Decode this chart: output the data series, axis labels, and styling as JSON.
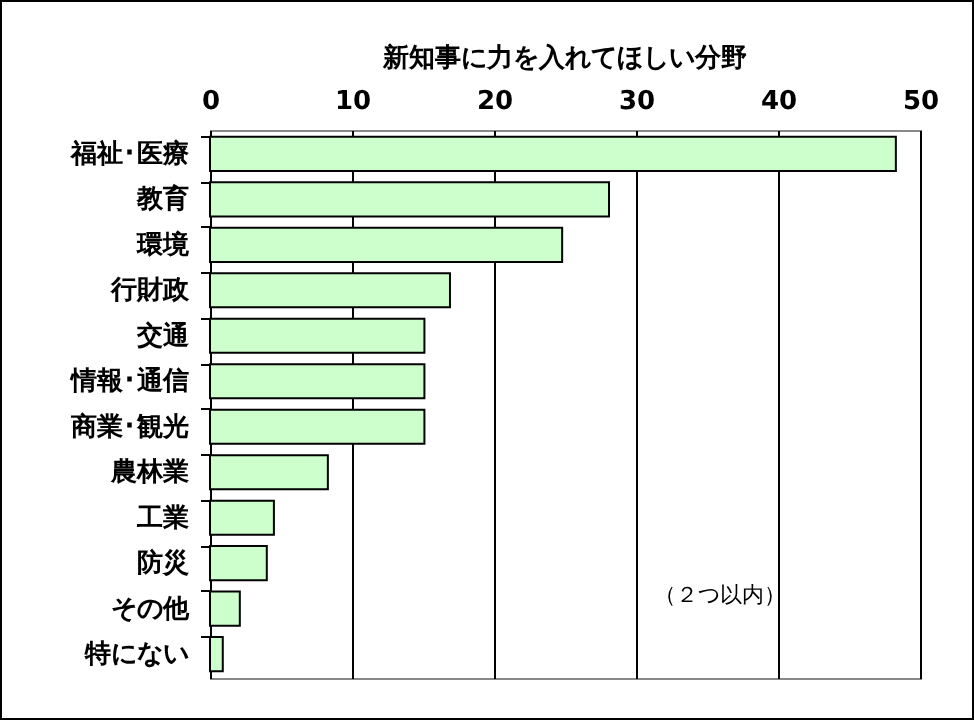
{
  "chart_data": {
    "type": "bar",
    "orientation": "horizontal",
    "title": "新知事に力を入れてほしい分野",
    "categories": [
      "福祉･医療",
      "教育",
      "環境",
      "行財政",
      "交通",
      "情報･通信",
      "商業･観光",
      "農林業",
      "工業",
      "防災",
      "その他",
      "特にない"
    ],
    "values": [
      48.3,
      28.1,
      24.8,
      16.9,
      15.1,
      15.1,
      15.1,
      8.3,
      4.5,
      4.0,
      2.1,
      0.9
    ],
    "color": "#ccffcc",
    "xlim": [
      0,
      50
    ],
    "xticks": [
      0,
      10,
      20,
      30,
      40,
      50
    ],
    "grid": "x",
    "annotations": [
      "（２つ以内）"
    ]
  }
}
